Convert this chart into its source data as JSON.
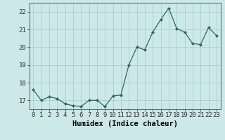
{
  "x": [
    0,
    1,
    2,
    3,
    4,
    5,
    6,
    7,
    8,
    9,
    10,
    11,
    12,
    13,
    14,
    15,
    16,
    17,
    18,
    19,
    20,
    21,
    22,
    23
  ],
  "y": [
    17.6,
    17.0,
    17.2,
    17.1,
    16.8,
    16.7,
    16.65,
    17.0,
    17.0,
    16.65,
    17.25,
    17.3,
    19.0,
    20.0,
    19.85,
    20.85,
    21.55,
    22.2,
    21.05,
    20.85,
    20.2,
    20.15,
    21.1,
    20.65
  ],
  "xlabel": "Humidex (Indice chaleur)",
  "xlim": [
    -0.5,
    23.5
  ],
  "ylim": [
    16.5,
    22.5
  ],
  "yticks": [
    17,
    18,
    19,
    20,
    21,
    22
  ],
  "xticks": [
    0,
    1,
    2,
    3,
    4,
    5,
    6,
    7,
    8,
    9,
    10,
    11,
    12,
    13,
    14,
    15,
    16,
    17,
    18,
    19,
    20,
    21,
    22,
    23
  ],
  "line_color": "#2e6b5e",
  "marker": "D",
  "marker_size": 2.0,
  "bg_color": "#cce8e8",
  "grid_color": "#aacece",
  "label_fontsize": 7.5,
  "tick_fontsize": 6.5
}
